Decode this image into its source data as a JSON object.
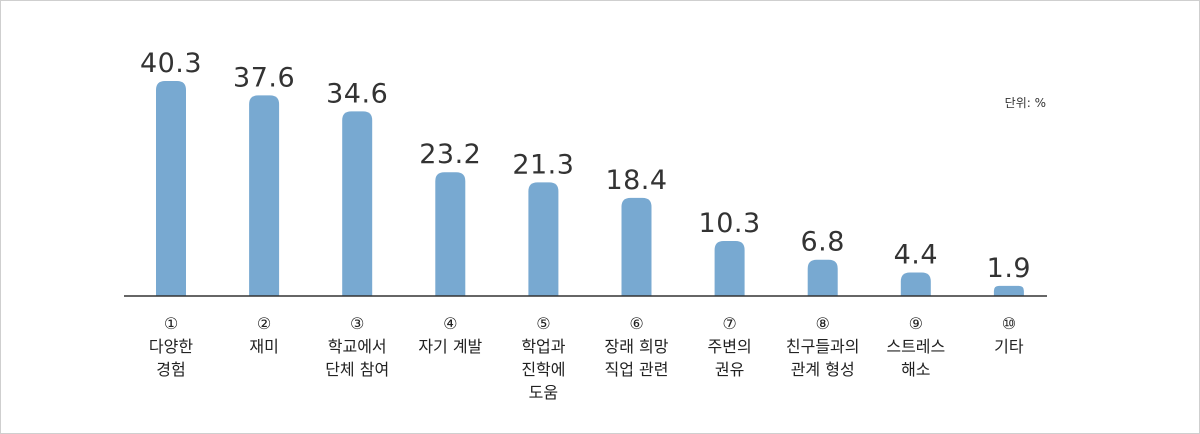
{
  "chart_data": {
    "type": "bar",
    "unit_label": "단위: %",
    "bar_color": "#78a9d1",
    "axis_color": "#333333",
    "categories": [
      {
        "number": "①",
        "label_lines": [
          "다양한",
          "경험"
        ]
      },
      {
        "number": "②",
        "label_lines": [
          "재미"
        ]
      },
      {
        "number": "③",
        "label_lines": [
          "학교에서",
          "단체 참여"
        ]
      },
      {
        "number": "④",
        "label_lines": [
          "자기 계발"
        ]
      },
      {
        "number": "⑤",
        "label_lines": [
          "학업과",
          "진학에",
          "도움"
        ]
      },
      {
        "number": "⑥",
        "label_lines": [
          "장래 희망",
          "직업 관련"
        ]
      },
      {
        "number": "⑦",
        "label_lines": [
          "주변의",
          "권유"
        ]
      },
      {
        "number": "⑧",
        "label_lines": [
          "친구들과의",
          "관계 형성"
        ]
      },
      {
        "number": "⑨",
        "label_lines": [
          "스트레스",
          "해소"
        ]
      },
      {
        "number": "⑩",
        "label_lines": [
          "기타"
        ]
      }
    ],
    "values": [
      40.3,
      37.6,
      34.6,
      23.2,
      21.3,
      18.4,
      10.3,
      6.8,
      4.4,
      1.9
    ],
    "value_labels": [
      "40.3",
      "37.6",
      "34.6",
      "23.2",
      "21.3",
      "18.4",
      "10.3",
      "6.8",
      "4.4",
      "1.9"
    ],
    "ylim": [
      0,
      40.3
    ]
  }
}
